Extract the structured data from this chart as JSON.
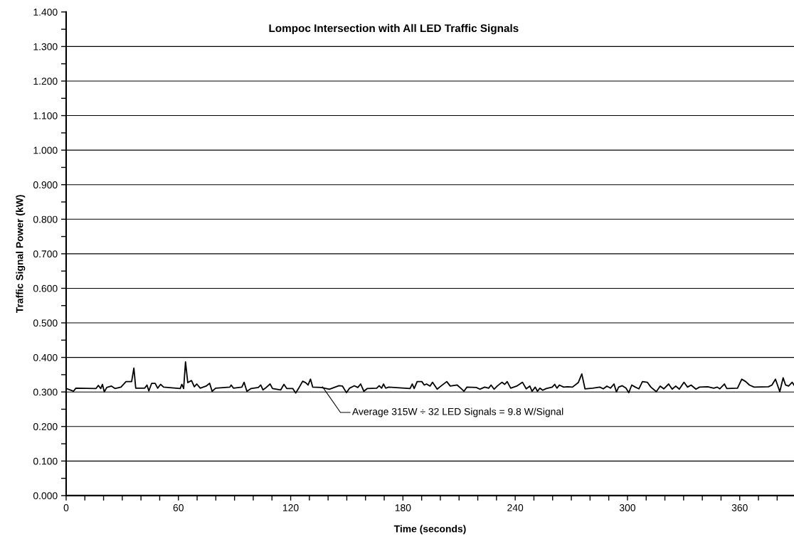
{
  "chart_data": {
    "type": "line",
    "title": "Lompoc Intersection with All LED Traffic Signals",
    "xlabel": "Time (seconds)",
    "ylabel": "Traffic Signal Power (kW)",
    "series": [
      {
        "color": "#000000",
        "x": [
          0.1,
          3.9,
          5.2,
          16,
          17.2,
          18.5,
          19.4,
          20.4,
          21.7,
          24.2,
          26.1,
          29.3,
          32.0,
          35.0,
          36.2,
          37.2,
          42,
          43.2,
          44.2,
          45.7,
          47.6,
          48.9,
          50.5,
          52.1,
          61,
          61.8,
          62.8,
          63.8,
          65,
          67,
          68.5,
          69.8,
          71.7,
          74.8,
          76.7,
          78,
          79.9,
          87.5,
          88.2,
          89.4,
          93.9,
          95.1,
          96.6,
          98.9,
          102.7,
          104,
          105.2,
          106.5,
          109,
          110.3,
          114.7,
          116.4,
          117.9,
          121.1,
          122.7,
          124.2,
          126.4,
          128,
          129.3,
          130.6,
          131.8,
          136.3,
          140.7,
          145.8,
          147.7,
          149.8,
          151.5,
          154,
          155.9,
          157.4,
          159.1,
          161,
          166,
          167.3,
          168.6,
          169.6,
          170.8,
          172.4,
          183.8,
          185,
          186,
          187.6,
          190.1,
          191.4,
          192.6,
          194.5,
          195.8,
          198.3,
          199.6,
          203.4,
          205.3,
          209,
          210.9,
          212.6,
          214.2,
          219.2,
          221.1,
          223.7,
          225.8,
          227.1,
          228.7,
          230.4,
          232.9,
          234.4,
          235.7,
          237.6,
          240.8,
          243.9,
          245.9,
          247.8,
          249,
          250.7,
          251.9,
          253.2,
          254.7,
          256.6,
          259.8,
          261.1,
          262.3,
          263.6,
          265.9,
          268,
          270.6,
          273.7,
          275.6,
          277.3,
          281.4,
          285.2,
          287.1,
          289,
          290.9,
          292.8,
          294.1,
          295.3,
          297.2,
          299.2,
          300.7,
          302.3,
          304.2,
          306.1,
          308,
          310.6,
          312.5,
          315.4,
          317.5,
          319.4,
          322,
          323.9,
          325.8,
          327.7,
          330.2,
          332.1,
          334,
          336.6,
          338.5,
          342.9,
          346.1,
          348,
          349.3,
          351.8,
          353.1,
          358.8,
          361.1,
          363.2,
          365.2,
          367.7,
          375.3,
          377.2,
          379.1,
          381.4,
          383.2,
          384.5,
          386.1,
          388,
          389
        ],
        "values": [
          0.31,
          0.302,
          0.311,
          0.31,
          0.319,
          0.31,
          0.322,
          0.3,
          0.313,
          0.317,
          0.31,
          0.314,
          0.33,
          0.33,
          0.369,
          0.311,
          0.311,
          0.32,
          0.303,
          0.325,
          0.325,
          0.311,
          0.322,
          0.314,
          0.31,
          0.322,
          0.31,
          0.387,
          0.327,
          0.333,
          0.315,
          0.323,
          0.311,
          0.317,
          0.325,
          0.302,
          0.311,
          0.314,
          0.32,
          0.311,
          0.314,
          0.328,
          0.302,
          0.31,
          0.313,
          0.32,
          0.306,
          0.311,
          0.323,
          0.31,
          0.306,
          0.322,
          0.31,
          0.31,
          0.297,
          0.31,
          0.331,
          0.327,
          0.32,
          0.337,
          0.314,
          0.313,
          0.308,
          0.318,
          0.317,
          0.298,
          0.311,
          0.318,
          0.313,
          0.323,
          0.302,
          0.31,
          0.311,
          0.318,
          0.311,
          0.323,
          0.311,
          0.314,
          0.31,
          0.323,
          0.31,
          0.33,
          0.33,
          0.32,
          0.323,
          0.317,
          0.328,
          0.308,
          0.314,
          0.33,
          0.317,
          0.32,
          0.311,
          0.302,
          0.314,
          0.313,
          0.308,
          0.314,
          0.311,
          0.32,
          0.308,
          0.317,
          0.328,
          0.322,
          0.33,
          0.311,
          0.317,
          0.328,
          0.309,
          0.317,
          0.302,
          0.314,
          0.302,
          0.311,
          0.305,
          0.31,
          0.314,
          0.322,
          0.311,
          0.32,
          0.314,
          0.315,
          0.314,
          0.327,
          0.352,
          0.309,
          0.311,
          0.314,
          0.309,
          0.317,
          0.311,
          0.323,
          0.3,
          0.314,
          0.318,
          0.311,
          0.298,
          0.32,
          0.314,
          0.309,
          0.33,
          0.328,
          0.314,
          0.301,
          0.317,
          0.309,
          0.323,
          0.308,
          0.317,
          0.308,
          0.328,
          0.314,
          0.32,
          0.308,
          0.314,
          0.315,
          0.311,
          0.314,
          0.309,
          0.323,
          0.31,
          0.311,
          0.337,
          0.33,
          0.32,
          0.314,
          0.315,
          0.32,
          0.337,
          0.301,
          0.341,
          0.32,
          0.317,
          0.328,
          0.32
        ]
      }
    ],
    "annotations": [
      {
        "text": "Average 315W ÷ 32 LED Signals = 9.8 W/Signal",
        "x": 137,
        "y": 0.315
      }
    ],
    "xlim": [
      0,
      389
    ],
    "xticks": [
      0,
      {
        "value": 10,
        "label": null
      },
      {
        "value": 20,
        "label": null
      },
      {
        "value": 30,
        "label": null
      },
      {
        "value": 40,
        "label": null
      },
      {
        "value": 50,
        "label": null
      },
      60,
      {
        "value": 70,
        "label": null
      },
      {
        "value": 80,
        "label": null
      },
      {
        "value": 90,
        "label": null
      },
      {
        "value": 100,
        "label": null
      },
      {
        "value": 110,
        "label": null
      },
      120,
      {
        "value": 130,
        "label": null
      },
      {
        "value": 140,
        "label": null
      },
      {
        "value": 150,
        "label": null
      },
      {
        "value": 160,
        "label": null
      },
      {
        "value": 170,
        "label": null
      },
      180,
      {
        "value": 190,
        "label": null
      },
      {
        "value": 200,
        "label": null
      },
      {
        "value": 210,
        "label": null
      },
      {
        "value": 220,
        "label": null
      },
      {
        "value": 230,
        "label": null
      },
      240,
      {
        "value": 250,
        "label": null
      },
      {
        "value": 260,
        "label": null
      },
      {
        "value": 270,
        "label": null
      },
      {
        "value": 280,
        "label": null
      },
      {
        "value": 290,
        "label": null
      },
      300,
      {
        "value": 310,
        "label": null
      },
      {
        "value": 320,
        "label": null
      },
      {
        "value": 330,
        "label": null
      },
      {
        "value": 340,
        "label": null
      },
      {
        "value": 350,
        "label": null
      },
      360,
      {
        "value": 370,
        "label": null
      },
      {
        "value": 380,
        "label": null
      }
    ],
    "ylim": [
      0,
      1.4
    ],
    "yticks": [
      {
        "value": 0,
        "label": "0.000"
      },
      {
        "value": 0.05,
        "label": null
      },
      {
        "value": 0.1,
        "label": "0.100"
      },
      {
        "value": 0.15,
        "label": null
      },
      {
        "value": 0.2,
        "label": "0.200"
      },
      {
        "value": 0.25,
        "label": null
      },
      {
        "value": 0.3,
        "label": "0.300"
      },
      {
        "value": 0.35,
        "label": null
      },
      {
        "value": 0.4,
        "label": "0.400"
      },
      {
        "value": 0.45,
        "label": null
      },
      {
        "value": 0.5,
        "label": "0.500"
      },
      {
        "value": 0.55,
        "label": null
      },
      {
        "value": 0.6,
        "label": "0.600"
      },
      {
        "value": 0.65,
        "label": null
      },
      {
        "value": 0.7,
        "label": "0.700"
      },
      {
        "value": 0.75,
        "label": null
      },
      {
        "value": 0.8,
        "label": "0.800"
      },
      {
        "value": 0.85,
        "label": null
      },
      {
        "value": 0.9,
        "label": "0.900"
      },
      {
        "value": 0.95,
        "label": null
      },
      {
        "value": 1.0,
        "label": "1.000"
      },
      {
        "value": 1.05,
        "label": null
      },
      {
        "value": 1.1,
        "label": "1.100"
      },
      {
        "value": 1.15,
        "label": null
      },
      {
        "value": 1.2,
        "label": "1.200"
      },
      {
        "value": 1.25,
        "label": null
      },
      {
        "value": 1.3,
        "label": "1.300"
      },
      {
        "value": 1.35,
        "label": null
      },
      {
        "value": 1.4,
        "label": "1.400"
      }
    ],
    "grid": "y",
    "legend": false,
    "marker": "none",
    "line_style": "solid"
  }
}
